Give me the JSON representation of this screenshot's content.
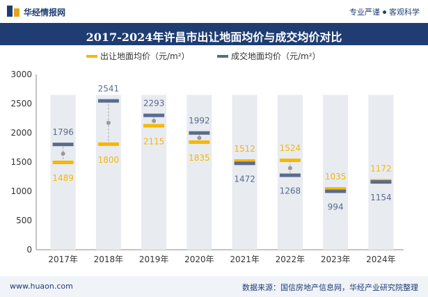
{
  "header": {
    "brand": "华经情报网",
    "tagline_left": "专业严谨",
    "tagline_right": "客观科学"
  },
  "title": "2017-2024年许昌市出让地面均价与成交均价对比",
  "footer": {
    "url": "www.huaon.com",
    "source": "数据来源：国信房地产信息网，华经产业研究院整理"
  },
  "colors": {
    "accent": "#1f3d73",
    "series_a": "#f5b800",
    "series_b": "#5b6b8c",
    "bar_bg": "#e8ebf0"
  },
  "chart_data": {
    "type": "bar",
    "categories": [
      "2017年",
      "2018年",
      "2019年",
      "2020年",
      "2021年",
      "2022年",
      "2023年",
      "2024年"
    ],
    "series": [
      {
        "name": "出让地面均价（元/m²）",
        "values": [
          1489,
          1800,
          2115,
          1835,
          1512,
          1524,
          1035,
          1172
        ]
      },
      {
        "name": "成交地面均价（元/m²）",
        "values": [
          1796,
          2541,
          2293,
          1992,
          1472,
          1268,
          994,
          1154
        ]
      }
    ],
    "ylim": [
      0,
      3000
    ],
    "yticks": [
      0,
      500,
      1000,
      1500,
      2000,
      2500,
      3000
    ],
    "legend": "top-center",
    "grid": false
  }
}
